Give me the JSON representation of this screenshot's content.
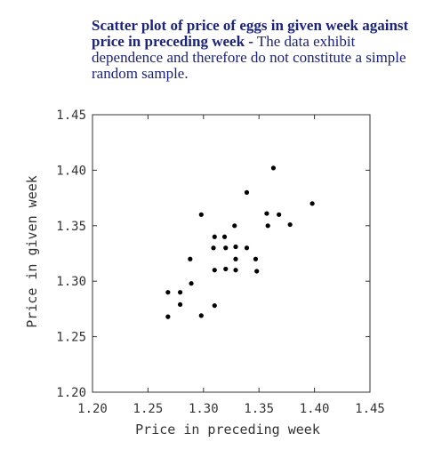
{
  "caption": {
    "bold": "Scatter plot of price of eggs in given week against price in preceding week -",
    "rest": " The data exhibit dependence and therefore do not constitute a simple random sample."
  },
  "colors": {
    "caption": "#1a237e",
    "axis": "#333333",
    "points": "#000000"
  },
  "chart_data": {
    "type": "scatter",
    "title": "",
    "xlabel": "Price in preceding week",
    "ylabel": "Price in given week",
    "xlim": [
      1.2,
      1.45
    ],
    "ylim": [
      1.2,
      1.45
    ],
    "xticks": [
      "1.20",
      "1.25",
      "1.30",
      "1.35",
      "1.40",
      "1.45"
    ],
    "yticks": [
      "1.20",
      "1.25",
      "1.30",
      "1.35",
      "1.40",
      "1.45"
    ],
    "grid": false,
    "points": [
      [
        1.363,
        1.402
      ],
      [
        1.339,
        1.38
      ],
      [
        1.398,
        1.37
      ],
      [
        1.298,
        1.36
      ],
      [
        1.357,
        1.361
      ],
      [
        1.368,
        1.36
      ],
      [
        1.328,
        1.35
      ],
      [
        1.358,
        1.35
      ],
      [
        1.378,
        1.351
      ],
      [
        1.31,
        1.34
      ],
      [
        1.319,
        1.34
      ],
      [
        1.309,
        1.33
      ],
      [
        1.32,
        1.33
      ],
      [
        1.329,
        1.331
      ],
      [
        1.339,
        1.33
      ],
      [
        1.288,
        1.32
      ],
      [
        1.329,
        1.32
      ],
      [
        1.347,
        1.32
      ],
      [
        1.31,
        1.31
      ],
      [
        1.32,
        1.311
      ],
      [
        1.329,
        1.31
      ],
      [
        1.348,
        1.309
      ],
      [
        1.268,
        1.29
      ],
      [
        1.279,
        1.29
      ],
      [
        1.289,
        1.298
      ],
      [
        1.279,
        1.279
      ],
      [
        1.31,
        1.278
      ],
      [
        1.268,
        1.268
      ],
      [
        1.298,
        1.269
      ]
    ]
  }
}
